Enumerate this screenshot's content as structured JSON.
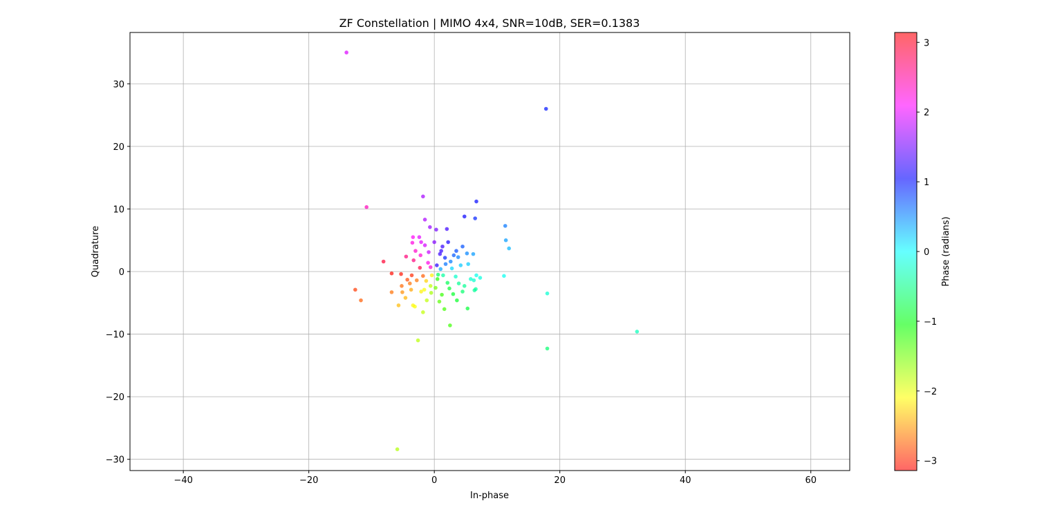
{
  "chart_data": {
    "type": "scatter",
    "title": "ZF Constellation | MIMO 4x4, SNR=10dB, SER=0.1383",
    "xlabel": "In-phase",
    "ylabel": "Quadrature",
    "xlim": [
      -48.5,
      66.2
    ],
    "ylim": [
      -31.8,
      38.2
    ],
    "xticks": [
      -40,
      -20,
      0,
      20,
      40,
      60
    ],
    "yticks": [
      -30,
      -20,
      -10,
      0,
      10,
      20,
      30
    ],
    "grid": true,
    "colorbar": {
      "label": "Phase (radians)",
      "range": [
        -3.1416,
        3.1416
      ],
      "ticks": [
        -3,
        -2,
        -1,
        0,
        1,
        2,
        3
      ],
      "colormap": "hsv"
    },
    "points": [
      [
        -14.0,
        35.0
      ],
      [
        17.8,
        26.0
      ],
      [
        -10.8,
        10.3
      ],
      [
        -1.8,
        12.0
      ],
      [
        6.7,
        11.2
      ],
      [
        4.8,
        8.8
      ],
      [
        6.5,
        8.5
      ],
      [
        -1.5,
        8.3
      ],
      [
        -0.7,
        7.1
      ],
      [
        2.0,
        6.8
      ],
      [
        0.3,
        6.7
      ],
      [
        11.3,
        7.3
      ],
      [
        11.4,
        5.0
      ],
      [
        11.9,
        3.7
      ],
      [
        -3.4,
        5.5
      ],
      [
        -2.4,
        5.5
      ],
      [
        -3.5,
        4.6
      ],
      [
        -2.1,
        4.7
      ],
      [
        0.0,
        4.7
      ],
      [
        2.2,
        4.7
      ],
      [
        4.5,
        4.0
      ],
      [
        6.2,
        2.8
      ],
      [
        5.2,
        2.9
      ],
      [
        -8.1,
        1.6
      ],
      [
        -4.5,
        2.4
      ],
      [
        -1.5,
        4.2
      ],
      [
        1.3,
        4.0
      ],
      [
        3.5,
        3.3
      ],
      [
        -6.8,
        -0.3
      ],
      [
        -5.3,
        -0.4
      ],
      [
        -3.6,
        -0.6
      ],
      [
        -12.6,
        -2.9
      ],
      [
        -11.7,
        -4.6
      ],
      [
        -6.8,
        -3.3
      ],
      [
        -5.2,
        -2.3
      ],
      [
        -4.3,
        -1.3
      ],
      [
        -5.1,
        -3.3
      ],
      [
        -4.6,
        -4.2
      ],
      [
        -3.7,
        -2.9
      ],
      [
        -5.7,
        -5.4
      ],
      [
        -3.4,
        -5.4
      ],
      [
        -3.1,
        -5.6
      ],
      [
        -1.8,
        -6.5
      ],
      [
        -2.6,
        -11.0
      ],
      [
        -5.9,
        -28.4
      ],
      [
        1.6,
        -6.0
      ],
      [
        2.5,
        -8.6
      ],
      [
        5.3,
        -5.9
      ],
      [
        3.6,
        -4.6
      ],
      [
        0.8,
        -4.8
      ],
      [
        -1.2,
        -4.6
      ],
      [
        -2.1,
        -3.2
      ],
      [
        1.2,
        -3.7
      ],
      [
        3.0,
        -3.6
      ],
      [
        4.5,
        -3.2
      ],
      [
        6.4,
        -3.0
      ],
      [
        6.6,
        -2.8
      ],
      [
        4.8,
        -2.3
      ],
      [
        3.9,
        -1.9
      ],
      [
        6.3,
        -1.4
      ],
      [
        7.3,
        -1.0
      ],
      [
        6.7,
        -0.6
      ],
      [
        5.8,
        -1.2
      ],
      [
        11.1,
        -0.7
      ],
      [
        18.0,
        -3.5
      ],
      [
        18.0,
        -12.3
      ],
      [
        32.3,
        -9.6
      ],
      [
        4.2,
        1.0
      ],
      [
        5.4,
        1.2
      ],
      [
        3.8,
        2.3
      ],
      [
        2.6,
        1.6
      ],
      [
        -1.0,
        1.4
      ],
      [
        -2.2,
        2.6
      ],
      [
        -3.0,
        3.3
      ],
      [
        0.9,
        2.8
      ],
      [
        1.7,
        2.2
      ],
      [
        -1.3,
        -1.5
      ],
      [
        -0.6,
        -2.3
      ],
      [
        0.5,
        -1.2
      ],
      [
        1.4,
        -0.6
      ],
      [
        2.1,
        -1.8
      ],
      [
        -2.3,
        0.6
      ],
      [
        -1.8,
        -0.7
      ],
      [
        0.4,
        1.0
      ],
      [
        1.0,
        0.4
      ],
      [
        -0.6,
        0.7
      ],
      [
        0.6,
        -0.5
      ],
      [
        -0.4,
        -0.6
      ],
      [
        2.8,
        0.5
      ],
      [
        -2.8,
        -1.4
      ],
      [
        -0.9,
        3.1
      ],
      [
        1.1,
        3.3
      ],
      [
        3.1,
        2.6
      ],
      [
        -3.3,
        1.8
      ],
      [
        -1.6,
        -2.9
      ],
      [
        0.2,
        -2.6
      ],
      [
        2.4,
        -2.7
      ],
      [
        3.4,
        -0.8
      ],
      [
        -3.9,
        -1.9
      ],
      [
        -0.5,
        -3.4
      ],
      [
        1.8,
        1.2
      ]
    ]
  }
}
